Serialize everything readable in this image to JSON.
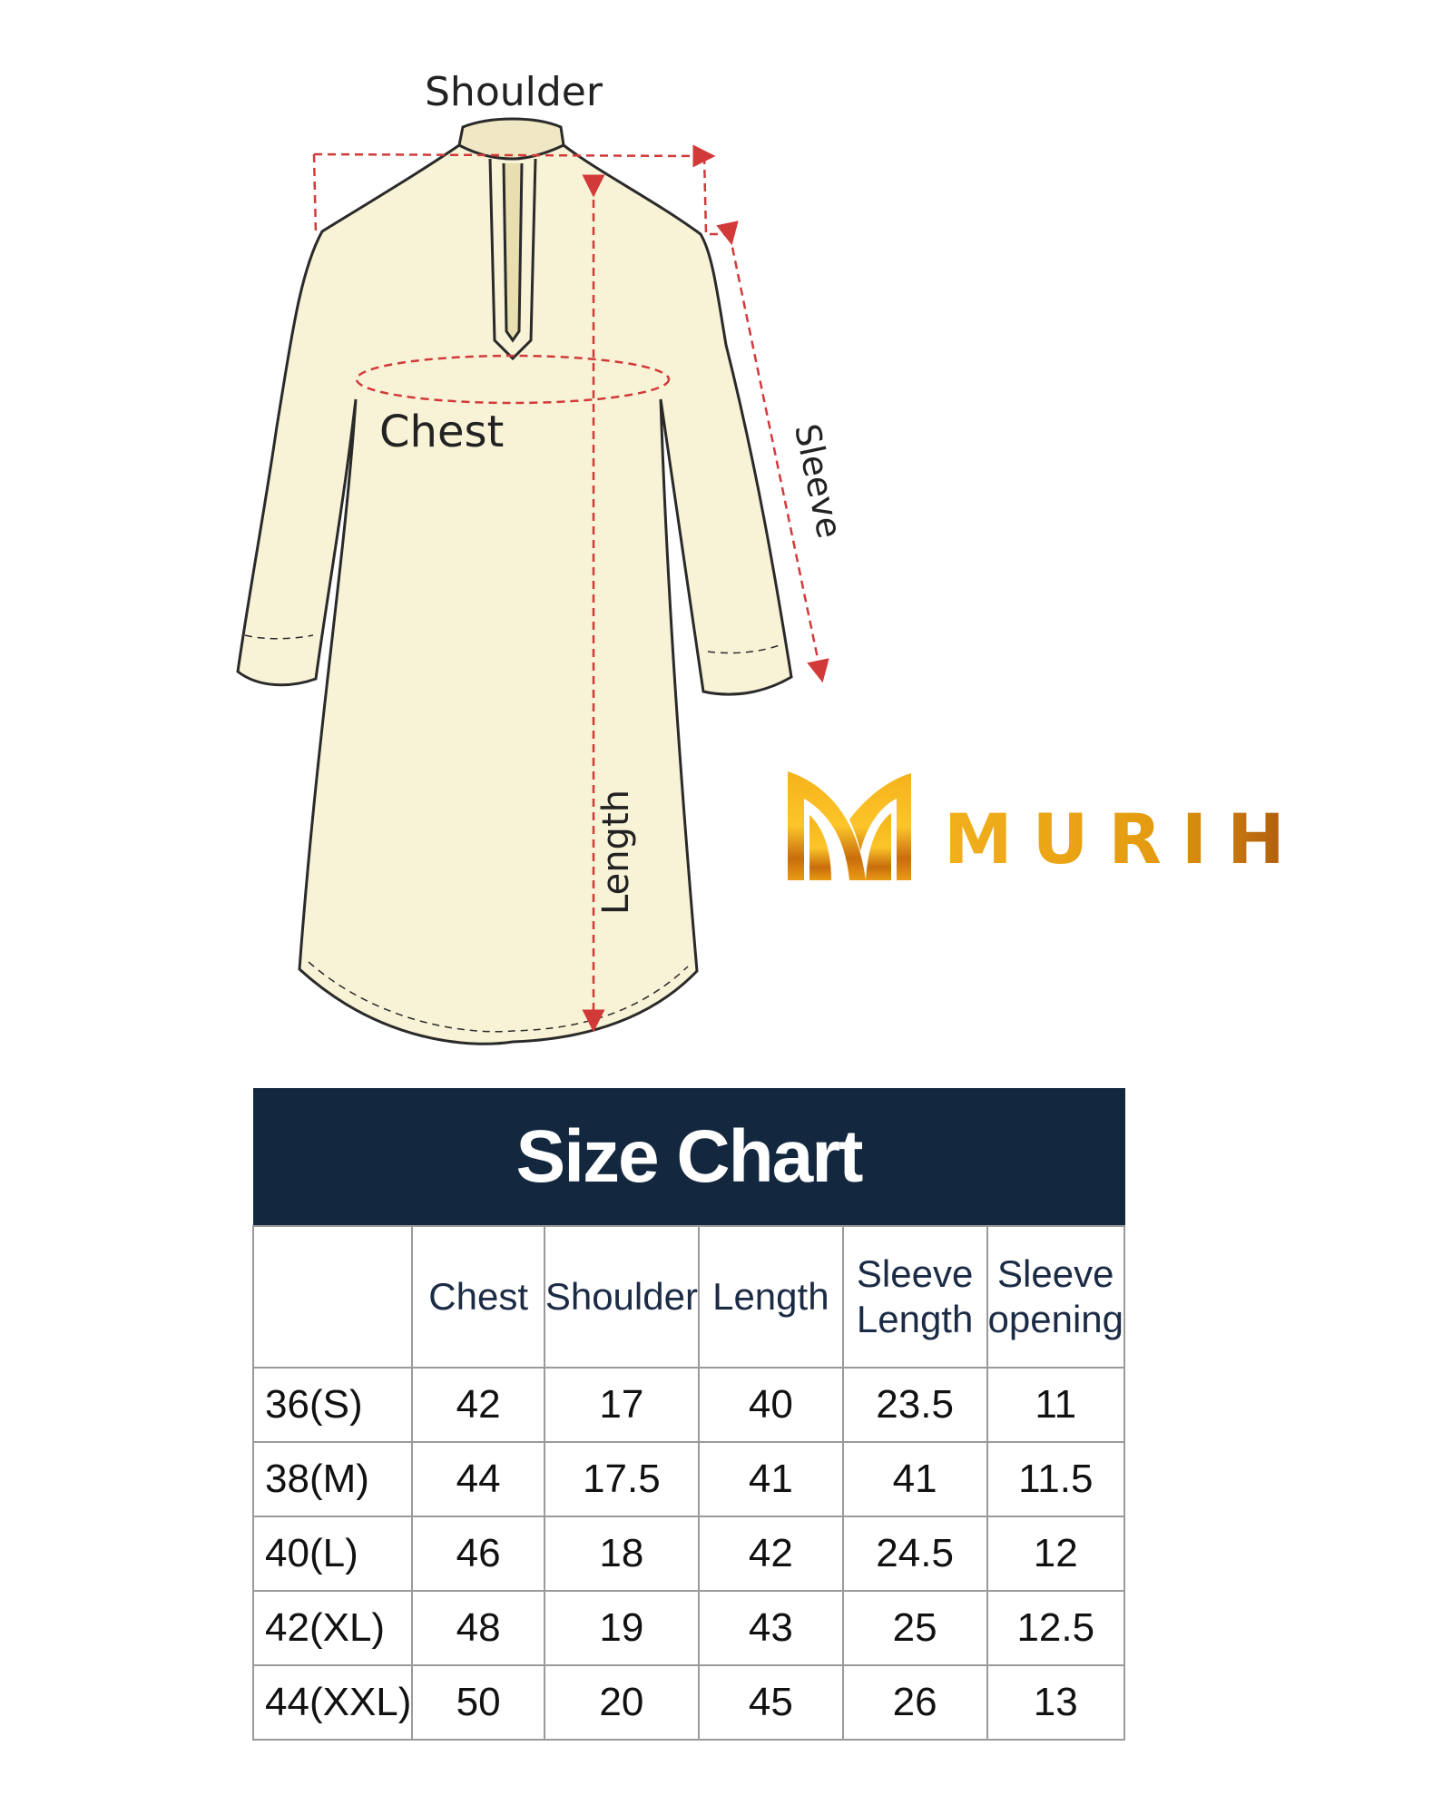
{
  "diagram": {
    "labels": {
      "shoulder": "Shoulder",
      "chest": "Chest",
      "sleeve": "Sleeve",
      "length": "Length"
    },
    "colors": {
      "garment_fill": "#f8f3d6",
      "outline": "#2a2a2a",
      "measure_line": "#d23a3a"
    }
  },
  "brand": {
    "name": "MURIH",
    "logo_letter": "M",
    "colors": {
      "gold": "#f2b01c",
      "bronze": "#a8540c"
    }
  },
  "size_chart": {
    "title": "Size Chart",
    "header_color": "#13283f",
    "columns": [
      "",
      "Chest",
      "Shoulder",
      "Length",
      "Sleeve Length",
      "Sleeve opening"
    ],
    "rows": [
      [
        "36(S)",
        "42",
        "17",
        "40",
        "23.5",
        "11"
      ],
      [
        "38(M)",
        "44",
        "17.5",
        "41",
        "41",
        "11.5"
      ],
      [
        "40(L)",
        "46",
        "18",
        "42",
        "24.5",
        "12"
      ],
      [
        "42(XL)",
        "48",
        "19",
        "43",
        "25",
        "12.5"
      ],
      [
        "44(XXL)",
        "50",
        "20",
        "45",
        "26",
        "13"
      ]
    ]
  }
}
